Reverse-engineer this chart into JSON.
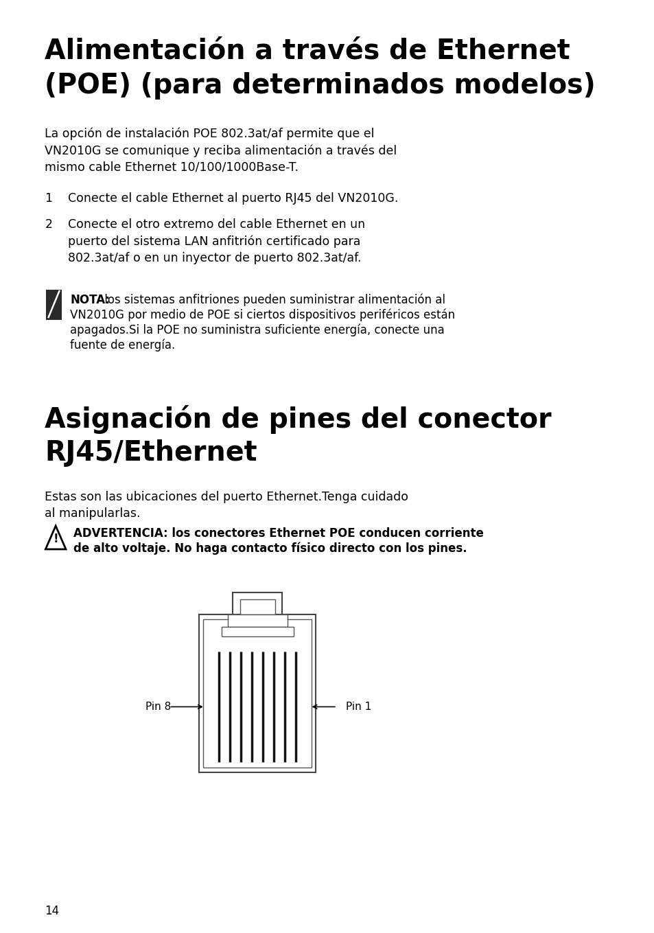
{
  "bg_color": "#ffffff",
  "text_color": "#000000",
  "title1_line1": "Alimentación a través de Ethernet",
  "title1_line2": "(POE) (para determinados modelos)",
  "body1": "La opción de instalación POE 802.3at/af permite que el\nVN2010G se comunique y reciba alimentación a través del\nmismo cable Ethernet 10/100/1000Base-T.",
  "item1_text": "Conecte el cable Ethernet al puerto RJ45 del VN2010G.",
  "item2_text": "Conecte el otro extremo del cable Ethernet en un\npuerto del sistema LAN anfitrión certificado para\n802.3at/af o en un inyector de puerto 802.3at/af.",
  "note_label": "NOTA:",
  "note_line1": " los sistemas anfitriones pueden suministrar alimentación al",
  "note_line2": "VN2010G por medio de POE si ciertos dispositivos periféricos están",
  "note_line3": "apagados.Si la POE no suministra suficiente energía, conecte una",
  "note_line4": "fuente de energía.",
  "title2_line1": "Asignación de pines del conector",
  "title2_line2": "RJ45/Ethernet",
  "body2": "Estas son las ubicaciones del puerto Ethernet.Tenga cuidado\nal manipularlas.",
  "warn_line1": "ADVERTENCIA: los conectores Ethernet POE conducen corriente",
  "warn_line2": "de alto voltaje. No haga contacto físico directo con los pines.",
  "pin8_label": "Pin 8",
  "pin1_label": "Pin 1",
  "page_num": "14"
}
